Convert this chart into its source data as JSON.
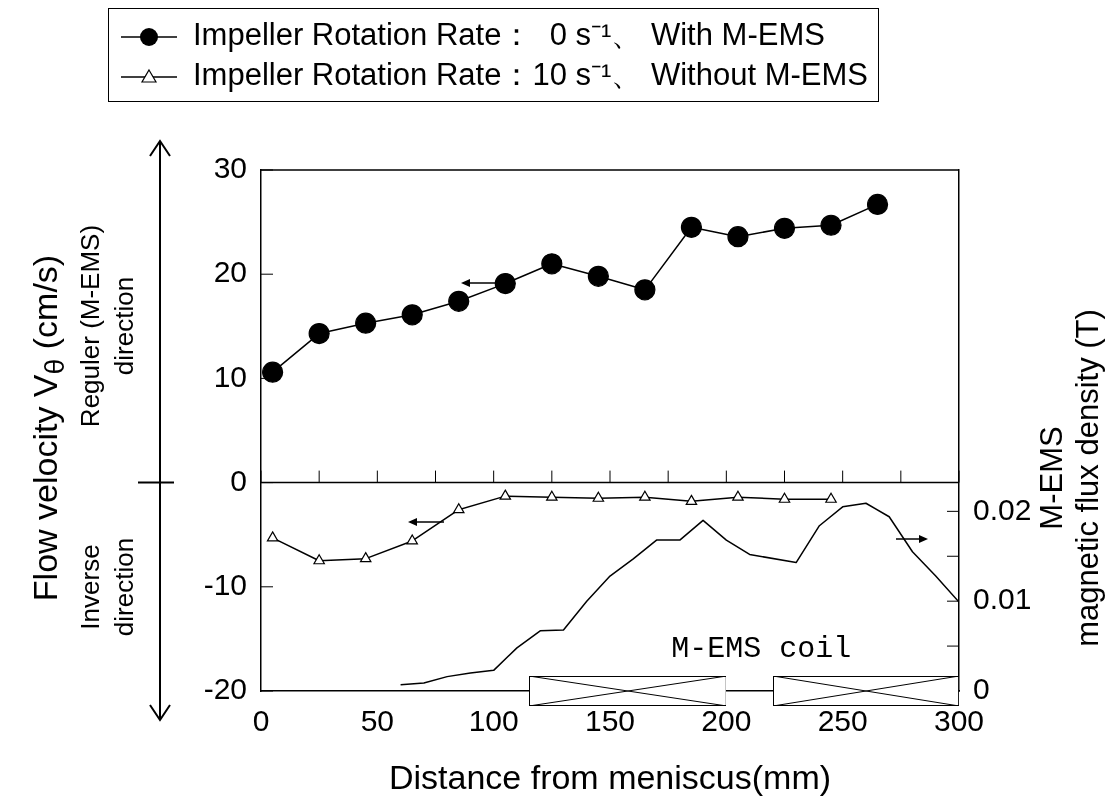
{
  "chart_data": {
    "type": "line",
    "xlabel": "Distance from meniscus(mm)",
    "ylabel": "Flow velocity V$_{θ}$ (cm/s)",
    "y2label": "M-EMS\nmagnetic flux density (T)",
    "xlim": [
      0,
      300
    ],
    "xticks": [
      0,
      {
        "value": 25,
        "label": null
      },
      50,
      {
        "value": 75,
        "label": null
      },
      100,
      {
        "value": 125,
        "label": null
      },
      150,
      {
        "value": 175,
        "label": null
      },
      200,
      {
        "value": 225,
        "label": null
      },
      250,
      {
        "value": 275,
        "label": null
      },
      300
    ],
    "ylim": [
      -20,
      30
    ],
    "yticks": [
      -20,
      -10,
      0,
      10,
      20,
      30
    ],
    "y2lim": [
      0,
      0.058
    ],
    "y2ticks": [
      0,
      {
        "value": 0.005,
        "label": null
      },
      0.01,
      {
        "value": 0.015,
        "label": null
      },
      0.02
    ],
    "legend": "top",
    "grid": false,
    "ref_lines": [
      {
        "axis": "y",
        "value": 0
      }
    ],
    "annotations": [
      "Reguler (M-EMS)\ndirection",
      "Inverse\ndirection",
      "M-EMS coil"
    ],
    "series": [
      {
        "name": "Impeller Rotation Rate：  0 s⁻¹、 With M-EMS",
        "color": "#000000",
        "marker": "circle",
        "x": [
          5,
          25,
          45,
          65,
          85,
          105,
          125,
          145,
          165,
          185,
          205,
          225,
          245,
          265
        ],
        "values": [
          10.6,
          14.3,
          15.3,
          16.1,
          17.4,
          19.1,
          21.0,
          19.8,
          18.5,
          24.5,
          23.6,
          24.4,
          24.7,
          26.7
        ]
      },
      {
        "name": "Impeller Rotation Rate：10 s⁻¹、 Without M-EMS",
        "color": "#000000",
        "marker": "triangle",
        "x": [
          5,
          25,
          45,
          65,
          85,
          105,
          125,
          145,
          165,
          185,
          205,
          225,
          245
        ],
        "values": [
          -5.3,
          -7.5,
          -7.3,
          -5.6,
          -2.6,
          -1.3,
          -1.4,
          -1.5,
          -1.4,
          -1.8,
          -1.4,
          -1.6,
          -1.6
        ]
      },
      {
        "color": "#000000",
        "marker": "none",
        "axis": "y2",
        "x": [
          60,
          70,
          80,
          90,
          100,
          110,
          120,
          130,
          140,
          150,
          160,
          170,
          180,
          190,
          200,
          210,
          230,
          240,
          250,
          260,
          270,
          280,
          290,
          300
        ],
        "values": [
          0.0007,
          0.0009,
          0.0016,
          0.002,
          0.0023,
          0.0048,
          0.0067,
          0.0068,
          0.01,
          0.0128,
          0.0147,
          0.0168,
          0.0168,
          0.019,
          0.0168,
          0.0152,
          0.0143,
          0.0184,
          0.0205,
          0.0209,
          0.0194,
          0.0155,
          0.0128,
          0.0099
        ]
      }
    ]
  }
}
